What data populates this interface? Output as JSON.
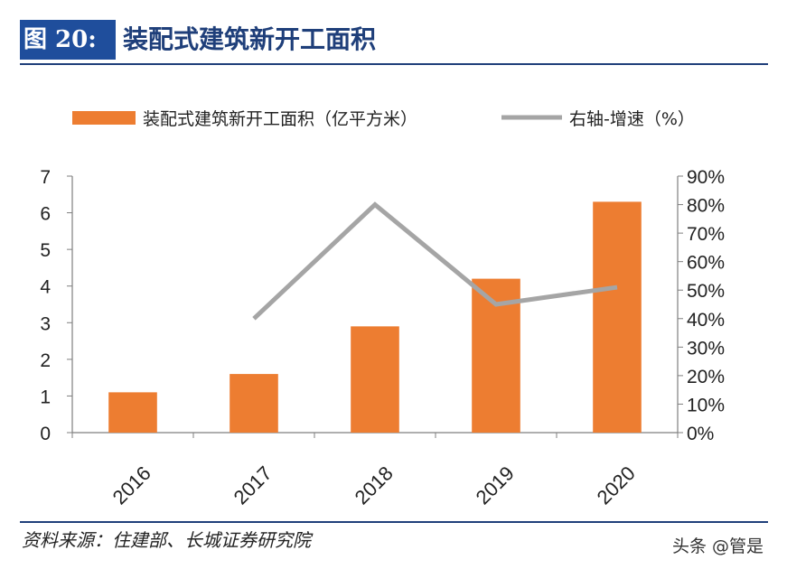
{
  "header": {
    "figure_label": "图 20:",
    "title": "装配式建筑新开工面积"
  },
  "chart_data": {
    "type": "bar",
    "categories": [
      "2016",
      "2017",
      "2018",
      "2019",
      "2020"
    ],
    "series": [
      {
        "name": "装配式建筑新开工面积（亿平方米）",
        "type": "bar",
        "axis": "left",
        "color": "#ed7d31",
        "values": [
          1.1,
          1.6,
          2.9,
          4.2,
          6.3
        ]
      },
      {
        "name": "右轴-增速（%）",
        "type": "line",
        "axis": "right",
        "color": "#a5a5a5",
        "values": [
          null,
          40,
          80,
          45,
          51
        ]
      }
    ],
    "ylim": [
      0,
      7
    ],
    "y_ticks": [
      "0",
      "1",
      "2",
      "3",
      "4",
      "5",
      "6",
      "7"
    ],
    "y2lim": [
      0,
      90
    ],
    "y2_ticks": [
      "0%",
      "10%",
      "20%",
      "30%",
      "40%",
      "50%",
      "60%",
      "70%",
      "80%",
      "90%"
    ],
    "legend_position": "top",
    "grid": false
  },
  "footer": {
    "source": "资料来源：住建部、长城证券研究院",
    "watermark": "头条 @管是"
  }
}
